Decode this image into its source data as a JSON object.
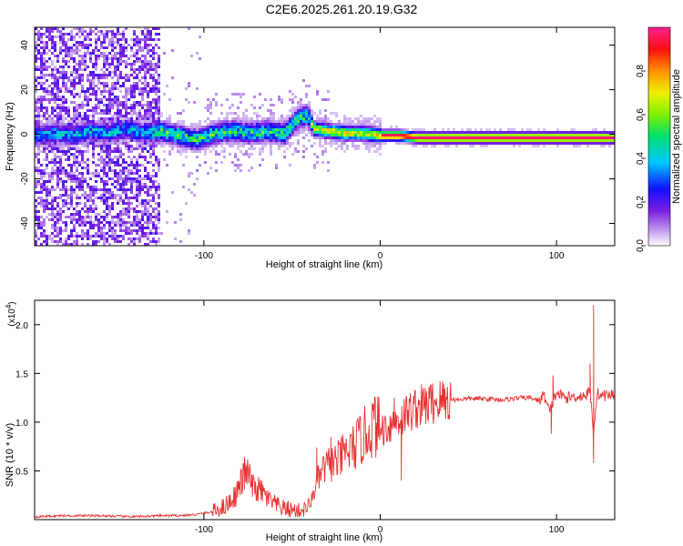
{
  "title": "C2E6.2025.261.20.19.G32",
  "colors": {
    "snr_line": "#e83030",
    "axis": "#000000",
    "background": "#ffffff"
  },
  "chart_data": [
    {
      "type": "heatmap",
      "name": "spectrogram",
      "xlabel": "Height of straight line (km)",
      "ylabel": "Frequency (Hz)",
      "xlim": [
        -196,
        133
      ],
      "ylim": [
        -50,
        48
      ],
      "x_ticks": [
        -100,
        0,
        100
      ],
      "y_ticks": [
        -40,
        -20,
        0,
        20,
        40
      ],
      "ridge": {
        "x": [
          -196,
          -185,
          -175,
          -165,
          -155,
          -145,
          -135,
          -125,
          -115,
          -105,
          -95,
          -85,
          -75,
          -65,
          -55,
          -48,
          -42,
          -38,
          -30,
          -20,
          -10,
          0,
          10,
          20,
          40,
          60,
          80,
          92,
          100,
          110,
          118,
          125,
          133
        ],
        "freq": [
          0,
          1,
          0,
          2,
          1,
          3,
          1,
          2,
          0,
          -2,
          1,
          2,
          1,
          2,
          1,
          7,
          9,
          3,
          2,
          1,
          1,
          0,
          0,
          -1,
          -1,
          -1,
          -1,
          -1,
          -1,
          -1,
          -1,
          -1,
          -1
        ]
      },
      "colorbar": {
        "label": "Normalized spectral amplitude",
        "ticks": [
          0.0,
          0.2,
          0.4,
          0.6,
          0.8
        ],
        "tick_labels": [
          "0.0",
          "0.2",
          "0.4",
          "0.6",
          "0.8"
        ],
        "range": [
          0,
          1
        ]
      }
    },
    {
      "type": "line",
      "name": "snr",
      "xlabel": "Height of straight line (km)",
      "ylabel": "SNR (10 * v/v)",
      "yscale_label": "(x10",
      "yscale_exp": "4",
      "xlim": [
        -196,
        133
      ],
      "ylim": [
        0.0,
        2.25
      ],
      "x_ticks": [
        -100,
        0,
        100
      ],
      "y_ticks": [
        0.5,
        1.0,
        1.5,
        2.0
      ],
      "y_tick_labels": [
        "0.5",
        "1.0",
        "1.5",
        "2.0"
      ],
      "series": [
        {
          "name": "SNR",
          "x": [
            -196,
            -180,
            -160,
            -140,
            -125,
            -115,
            -105,
            -95,
            -88,
            -82,
            -78,
            -75,
            -72,
            -68,
            -62,
            -56,
            -50,
            -45,
            -40,
            -36,
            -32,
            -28,
            -24,
            -20,
            -16,
            -12,
            -8,
            -5,
            -3,
            0,
            4,
            8,
            12,
            16,
            20,
            25,
            30,
            35,
            40,
            50,
            60,
            70,
            80,
            85,
            90,
            93,
            96,
            100,
            105,
            110,
            115,
            117,
            119,
            121,
            123,
            126,
            130,
            133
          ],
          "y": [
            0.03,
            0.04,
            0.04,
            0.03,
            0.04,
            0.04,
            0.05,
            0.08,
            0.14,
            0.25,
            0.42,
            0.48,
            0.32,
            0.3,
            0.18,
            0.12,
            0.1,
            0.09,
            0.14,
            0.38,
            0.52,
            0.58,
            0.6,
            0.68,
            0.72,
            0.8,
            0.88,
            0.95,
            0.98,
            0.93,
            0.95,
            1.0,
            1.05,
            1.1,
            1.15,
            1.17,
            1.2,
            1.22,
            1.23,
            1.24,
            1.24,
            1.23,
            1.25,
            1.25,
            1.22,
            1.28,
            1.1,
            1.3,
            1.25,
            1.26,
            1.27,
            1.28,
            1.32,
            0.9,
            1.3,
            1.27,
            1.28,
            1.28
          ]
        }
      ],
      "peaks": [
        {
          "x": 121,
          "y": 2.2
        },
        {
          "x": 121,
          "y": 0.58
        },
        {
          "x": 98,
          "y": 1.48
        },
        {
          "x": 97,
          "y": 0.88
        },
        {
          "x": 119,
          "y": 1.6
        },
        {
          "x": -77,
          "y": 0.64
        },
        {
          "x": 8,
          "y": 1.25
        },
        {
          "x": 12,
          "y": 0.4
        },
        {
          "x": -28,
          "y": 0.85
        },
        {
          "x": -36,
          "y": 0.74
        }
      ]
    }
  ]
}
